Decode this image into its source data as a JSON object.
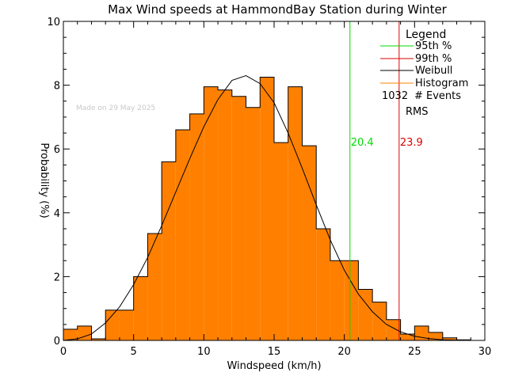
{
  "chart_data": {
    "type": "bar",
    "title": "Max Wind speeds at HammondBay Station during Winter",
    "xlabel": "Windspeed (km/h)",
    "ylabel": "Probability (%)",
    "xlim": [
      0,
      30
    ],
    "ylim": [
      0,
      10
    ],
    "x_ticks": [
      0,
      5,
      10,
      15,
      20,
      25,
      30
    ],
    "y_ticks": [
      0,
      2,
      4,
      6,
      8,
      10
    ],
    "histogram": {
      "name": "Histogram",
      "color": "#ff8000",
      "bin_width": 1,
      "bin_starts": [
        0,
        1,
        2,
        3,
        4,
        5,
        6,
        7,
        8,
        9,
        10,
        11,
        12,
        13,
        14,
        15,
        16,
        17,
        18,
        19,
        20,
        21,
        22,
        23,
        24,
        25,
        26,
        27,
        28,
        29
      ],
      "values": [
        0.35,
        0.45,
        0.05,
        0.95,
        0.95,
        2.0,
        3.35,
        5.6,
        6.6,
        7.1,
        7.95,
        7.85,
        7.65,
        7.3,
        8.25,
        6.2,
        7.95,
        6.1,
        3.5,
        2.5,
        2.5,
        1.6,
        1.2,
        0.65,
        0.2,
        0.45,
        0.25,
        0.08,
        0.02,
        0.0
      ]
    },
    "weibull": {
      "name": "Weibull",
      "color": "#000000",
      "x": [
        0,
        1,
        2,
        3,
        4,
        5,
        6,
        7,
        8,
        9,
        10,
        11,
        12,
        13,
        14,
        15,
        16,
        17,
        18,
        19,
        20,
        21,
        22,
        23,
        24,
        25,
        26,
        27,
        28,
        29
      ],
      "y": [
        0.0,
        0.05,
        0.2,
        0.55,
        1.05,
        1.75,
        2.6,
        3.6,
        4.65,
        5.7,
        6.7,
        7.55,
        8.15,
        8.3,
        8.05,
        7.45,
        6.5,
        5.4,
        4.25,
        3.15,
        2.2,
        1.45,
        0.9,
        0.5,
        0.27,
        0.13,
        0.06,
        0.02,
        0.01,
        0.0
      ]
    },
    "p95": {
      "name": "95th %",
      "value": 20.4,
      "label": "20.4",
      "color": "#00dd00"
    },
    "p99": {
      "name": "99th %",
      "value": 23.9,
      "label": "23.9",
      "color": "#dd0000"
    },
    "legend": {
      "title": "Legend",
      "entries": [
        {
          "label": "95th %",
          "color": "#00dd00"
        },
        {
          "label": "99th %",
          "color": "#dd0000"
        },
        {
          "label": "Weibull",
          "color": "#000000"
        },
        {
          "label": "Histogram",
          "color": "#ff8000"
        }
      ],
      "events_count": "1032",
      "events_label": "# Events",
      "rms_label": "RMS",
      "placement": "top-right"
    },
    "annotation": "Made on 29 May 2025"
  }
}
